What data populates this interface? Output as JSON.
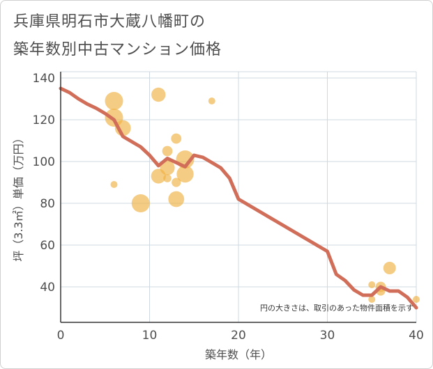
{
  "title_line1": "兵庫県明石市大蔵八幡町の",
  "title_line2": "築年数別中古マンション価格",
  "chart_data": {
    "type": "scatter",
    "xlabel": "築年数（年）",
    "ylabel": "坪（3.3㎡）単価（万円）",
    "xlim": [
      0,
      40
    ],
    "ylim": [
      23,
      143
    ],
    "xticks": [
      0,
      10,
      20,
      30,
      40
    ],
    "yticks": [
      40,
      60,
      80,
      100,
      120,
      140
    ],
    "grid": true,
    "note": "円の大きさは、取引のあった物件面積を示す",
    "colors": {
      "bubble": "#f0b041",
      "line": "#d06e5a",
      "grid": "#cfd8e0",
      "axis": "#333333"
    },
    "bubbles": [
      {
        "x": 6,
        "y": 129,
        "size": 3
      },
      {
        "x": 6,
        "y": 121,
        "size": 3
      },
      {
        "x": 6,
        "y": 89,
        "size": 1
      },
      {
        "x": 7,
        "y": 116,
        "size": 2.6
      },
      {
        "x": 9,
        "y": 80,
        "size": 3
      },
      {
        "x": 11,
        "y": 132,
        "size": 2.3
      },
      {
        "x": 11,
        "y": 93,
        "size": 2.4
      },
      {
        "x": 12,
        "y": 105,
        "size": 1.6
      },
      {
        "x": 12,
        "y": 97,
        "size": 2.4
      },
      {
        "x": 12,
        "y": 92,
        "size": 1.2
      },
      {
        "x": 13,
        "y": 111,
        "size": 1.6
      },
      {
        "x": 13,
        "y": 90,
        "size": 1.4
      },
      {
        "x": 13,
        "y": 82,
        "size": 2.6
      },
      {
        "x": 14,
        "y": 101,
        "size": 3
      },
      {
        "x": 14,
        "y": 94,
        "size": 2.8
      },
      {
        "x": 17,
        "y": 129,
        "size": 1
      },
      {
        "x": 35,
        "y": 41,
        "size": 1
      },
      {
        "x": 35,
        "y": 34,
        "size": 1
      },
      {
        "x": 36,
        "y": 40,
        "size": 1.6
      },
      {
        "x": 36,
        "y": 38,
        "size": 1.4
      },
      {
        "x": 37,
        "y": 49,
        "size": 2
      },
      {
        "x": 40,
        "y": 34,
        "size": 1
      }
    ],
    "trend_line": {
      "x": [
        0,
        1,
        2,
        3,
        4,
        5,
        6,
        7,
        8,
        9,
        10,
        11,
        12,
        13,
        14,
        15,
        16,
        17,
        18,
        19,
        20,
        21,
        22,
        23,
        24,
        25,
        26,
        27,
        28,
        29,
        30,
        31,
        32,
        33,
        34,
        35,
        36,
        37,
        38,
        39,
        40
      ],
      "y": [
        135,
        133,
        130,
        127.5,
        125.5,
        123,
        120,
        112,
        109.5,
        107,
        103,
        98,
        101.5,
        99.5,
        97.5,
        103,
        102,
        99.5,
        97,
        92,
        82,
        79.5,
        77,
        74.5,
        72,
        69.5,
        67,
        64.5,
        62,
        59.5,
        57,
        46,
        43,
        38.5,
        36,
        36,
        40,
        38,
        38,
        35,
        30
      ]
    }
  }
}
